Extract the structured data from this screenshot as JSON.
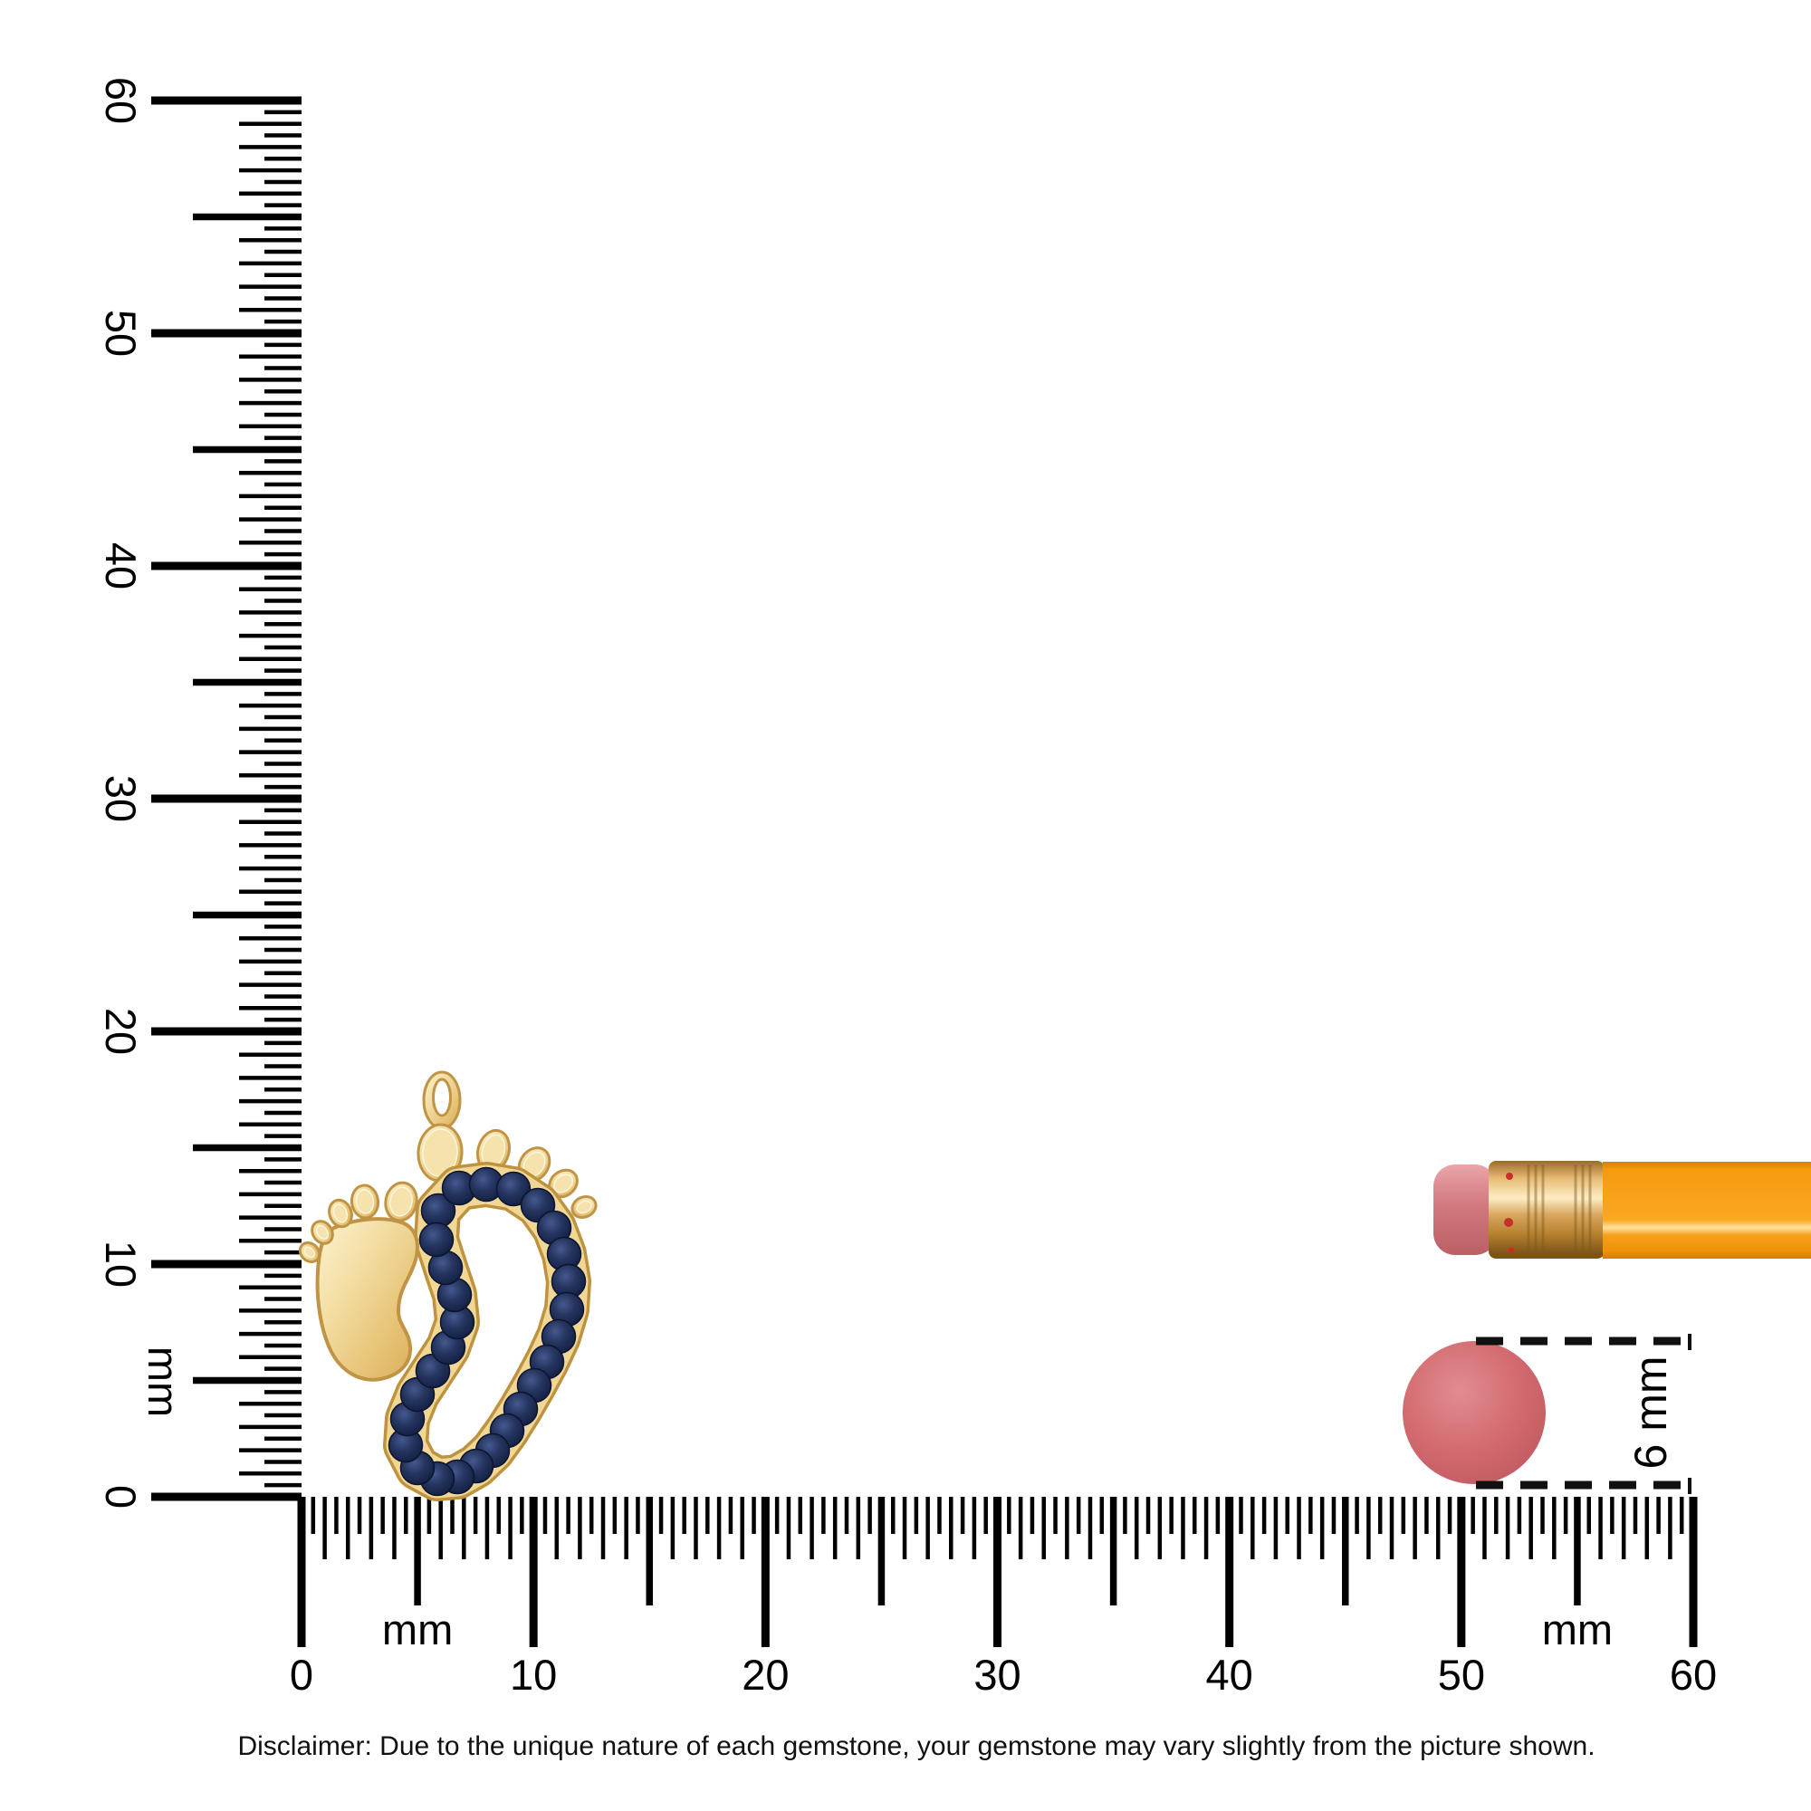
{
  "page": {
    "background": "#ffffff",
    "disclaimer": "Disclaimer: Due to the unique nature of each gemstone, your gemstone may vary slightly from the picture shown."
  },
  "rulers": {
    "unit_label": "mm",
    "tick_color": "#000000",
    "vertical": {
      "min_mm": 0,
      "max_mm": 60,
      "tick_step_mm": 0.5,
      "major_labels": [
        "0",
        "10",
        "20",
        "30",
        "40",
        "50",
        "60"
      ]
    },
    "horizontal": {
      "min_mm": 0,
      "max_mm": 60,
      "tick_step_mm": 0.5,
      "major_labels": [
        "0",
        "10",
        "20",
        "30",
        "40",
        "50",
        "60"
      ],
      "unit_label_positions_mm": [
        5,
        55
      ]
    }
  },
  "pendant": {
    "description": "baby-feet pendant, one solid gold foot and one larger foot outlined in round blue gemstones with bail",
    "metal_color": "#eccf8e",
    "metal_edge_color": "#c19445",
    "stone_color": "#1d2b55",
    "stone_count": 28,
    "toe_count_per_foot": 5
  },
  "size_reference": {
    "dimension_label": "6 mm",
    "circle_color": "#d2696e",
    "dash_color": "#111111"
  },
  "pencil": {
    "body_color": "#f89c10",
    "eraser_color": "#d2858a",
    "ferrule_color": "#d9a55c",
    "dot_color": "#c62f2a"
  }
}
